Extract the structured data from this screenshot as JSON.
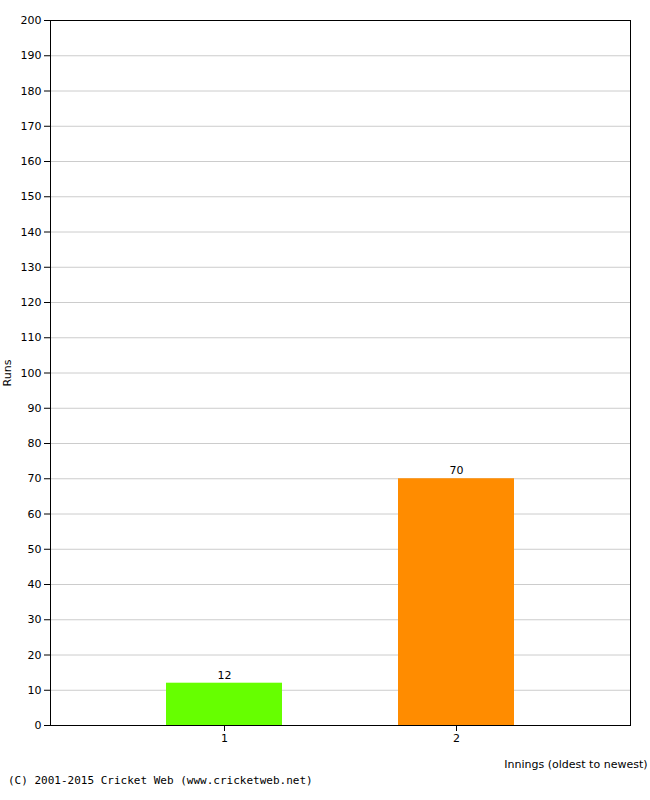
{
  "chart_data": {
    "type": "bar",
    "categories": [
      "1",
      "2"
    ],
    "values": [
      12,
      70
    ],
    "colors": [
      "#66ff00",
      "#ff8c00"
    ],
    "ylabel": "Runs",
    "xlabel": "Innings (oldest to newest)",
    "ylim": [
      0,
      200
    ],
    "yticks": [
      0,
      10,
      20,
      30,
      40,
      50,
      60,
      70,
      80,
      90,
      100,
      110,
      120,
      130,
      140,
      150,
      160,
      170,
      180,
      190,
      200
    ],
    "grid": true,
    "data_labels": true,
    "footnote": "(C) 2001-2015 Cricket Web (www.cricketweb.net)"
  }
}
